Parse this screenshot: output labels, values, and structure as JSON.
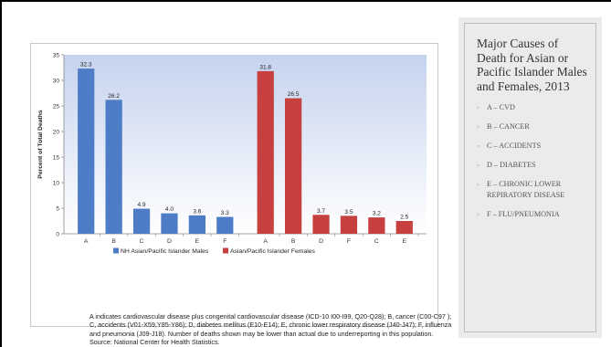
{
  "side_panel": {
    "title": "Major Causes of Death for Asian or Pacific Islander Males and Females, 2013",
    "items": [
      "A – CVD",
      "B – CANCER",
      "C – ACCIDENTS",
      "D – DIABETES",
      "E – CHRONIC LOWER REPIRATORY DISEASE",
      "F – FLU/PNEUMONIA"
    ],
    "bullet": "◦"
  },
  "caption": "A indicates cardiovascular disease plus congenital cardiovascular disease (ICD-10 I00-I99, Q20-Q28); B, cancer (C00-C97 ); C, accidents (V01-X59,Y85-Y86); D, diabetes mellitus (E10-E14); E, chronic lower respiratory disease (J40-J47); F, influenza and pneumonia (J09-J18). Number of deaths shown may be lower than actual due to underreporting in this population. Source: National Center for Health Statistics.",
  "chart_data": {
    "type": "bar",
    "ylabel": "Percent of Total Deaths",
    "xlabel": "",
    "ylim": [
      0,
      35
    ],
    "yticks": [
      0,
      5,
      10,
      15,
      20,
      25,
      30,
      35
    ],
    "grid": false,
    "legend_position": "bottom",
    "series": [
      {
        "name": "NH Asian/Pacific Islander Males",
        "color": "#4f7cc6",
        "categories": [
          "A",
          "B",
          "C",
          "D",
          "E",
          "F"
        ],
        "values": [
          32.3,
          26.2,
          4.9,
          4.0,
          3.6,
          3.3
        ],
        "labels": [
          "32.3",
          "26.2",
          "4.9",
          "4.0",
          "3.6",
          "3.3"
        ]
      },
      {
        "name": "Asian/Pacific Islander Females",
        "color": "#c6403f",
        "categories": [
          "A",
          "B",
          "D",
          "F",
          "C",
          "E"
        ],
        "values": [
          31.8,
          26.5,
          3.7,
          3.5,
          3.2,
          2.5
        ],
        "labels": [
          "31.8",
          "26.5",
          "3.7",
          "3.5",
          "3.2",
          "2.5"
        ]
      }
    ],
    "colors": {
      "background_top": "#c5d3ee",
      "background_bottom": "#ffffff"
    }
  }
}
